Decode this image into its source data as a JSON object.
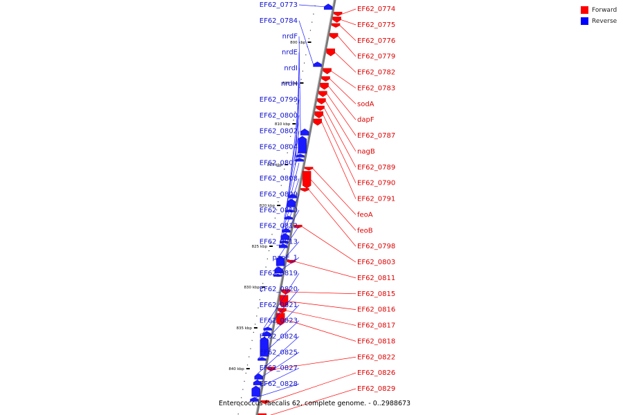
{
  "title": "Enterococcus faecalis 62, complete genome. - 0..2988673",
  "legend": [
    {
      "label": "Forward",
      "color": "#ff0000"
    },
    {
      "label": "Reverse",
      "color": "#0000ff"
    }
  ],
  "colors": {
    "forward": "#ff0000",
    "reverse": "#1a1aff",
    "backbone": "#7a7a7a"
  },
  "ticks": [
    {
      "label": "800 kbp",
      "kbp": 800
    },
    {
      "label": "805 kbp",
      "kbp": 805
    },
    {
      "label": "810 kbp",
      "kbp": 810
    },
    {
      "label": "815 kbp",
      "kbp": 815
    },
    {
      "label": "820 kbp",
      "kbp": 820
    },
    {
      "label": "825 kbp",
      "kbp": 825
    },
    {
      "label": "830 kbp",
      "kbp": 830
    },
    {
      "label": "835 kbp",
      "kbp": 835
    },
    {
      "label": "840 kbp",
      "kbp": 840
    }
  ],
  "forward_genes": [
    {
      "name": "EF62_0774",
      "start": 796.3,
      "end": 796.8
    },
    {
      "name": "EF62_0775",
      "start": 796.9,
      "end": 797.6
    },
    {
      "name": "EF62_0776",
      "start": 797.7,
      "end": 798.2
    },
    {
      "name": "EF62_0779",
      "start": 798.9,
      "end": 799.6
    },
    {
      "name": "EF62_0782",
      "start": 800.8,
      "end": 801.7
    },
    {
      "name": "EF62_0783",
      "start": 803.2,
      "end": 803.9
    },
    {
      "name": "sodA",
      "start": 804.2,
      "end": 804.8
    },
    {
      "name": "dapF",
      "start": 805.0,
      "end": 805.8
    },
    {
      "name": "EF62_0787",
      "start": 806.0,
      "end": 806.7
    },
    {
      "name": "nagB",
      "start": 806.9,
      "end": 807.6
    },
    {
      "name": "EF62_0789",
      "start": 807.8,
      "end": 808.4
    },
    {
      "name": "EF62_0790",
      "start": 808.5,
      "end": 809.3
    },
    {
      "name": "EF62_0791",
      "start": 809.4,
      "end": 810.2
    },
    {
      "name": "feoA",
      "start": 815.3,
      "end": 815.7
    },
    {
      "name": "feoB",
      "start": 815.8,
      "end": 817.9
    },
    {
      "name": "EF62_0798",
      "start": 817.9,
      "end": 818.3
    },
    {
      "name": "EF62_0803",
      "start": 822.4,
      "end": 822.8
    },
    {
      "name": "EF62_0811",
      "start": 826.7,
      "end": 827.1
    },
    {
      "name": "EF62_0815",
      "start": 830.3,
      "end": 830.9
    },
    {
      "name": "EF62_0816",
      "start": 831.0,
      "end": 832.5
    },
    {
      "name": "EF62_0817",
      "start": 832.6,
      "end": 833.2
    },
    {
      "name": "EF62_0818",
      "start": 833.2,
      "end": 834.7
    },
    {
      "name": "EF62_0822",
      "start": 839.8,
      "end": 840.3
    },
    {
      "name": "EF62_0826",
      "start": 843.9,
      "end": 844.3
    },
    {
      "name": "EF62_0829",
      "start": 845.5,
      "end": 846.2
    }
  ],
  "reverse_genes": [
    {
      "name": "EF62_0773",
      "start": 795.3,
      "end": 796.0
    },
    {
      "name": "EF62_0784",
      "start": 802.4,
      "end": 803.0
    },
    {
      "name": "nrdF",
      "start": 810.6,
      "end": 811.4
    },
    {
      "name": "nrdE",
      "start": 811.5,
      "end": 813.6
    },
    {
      "name": "nrdI",
      "start": 813.7,
      "end": 814.1
    },
    {
      "name": "nrdH",
      "start": 814.2,
      "end": 814.6
    },
    {
      "name": "EF62_0799",
      "start": 818.6,
      "end": 819.1
    },
    {
      "name": "EF62_0800",
      "start": 819.2,
      "end": 820.2
    },
    {
      "name": "EF62_0802",
      "start": 820.5,
      "end": 820.8
    },
    {
      "name": "EF62_0804",
      "start": 821.3,
      "end": 821.7
    },
    {
      "name": "EF62_0807",
      "start": 822.8,
      "end": 823.3
    },
    {
      "name": "EF62_0808",
      "start": 823.4,
      "end": 824.2
    },
    {
      "name": "EF62_0809",
      "start": 824.3,
      "end": 824.6
    },
    {
      "name": "EF62_0810",
      "start": 824.7,
      "end": 825.2
    },
    {
      "name": "EF62_0812",
      "start": 826.2,
      "end": 827.4
    },
    {
      "name": "EF62_0813",
      "start": 827.5,
      "end": 828.3
    },
    {
      "name": "panE_1",
      "start": 828.4,
      "end": 828.7
    },
    {
      "name": "EF62_0819",
      "start": 834.9,
      "end": 835.3
    },
    {
      "name": "EF62_0820",
      "start": 835.4,
      "end": 836.0
    },
    {
      "name": "EF62_0821",
      "start": 836.1,
      "end": 838.5
    },
    {
      "name": "EF62_0823",
      "start": 838.6,
      "end": 839.0
    },
    {
      "name": "EF62_0824",
      "start": 840.6,
      "end": 841.3
    },
    {
      "name": "EF62_0825",
      "start": 841.4,
      "end": 842.0
    },
    {
      "name": "EF62_0827",
      "start": 842.1,
      "end": 843.4
    },
    {
      "name": "EF62_0828",
      "start": 843.5,
      "end": 844.0
    }
  ]
}
